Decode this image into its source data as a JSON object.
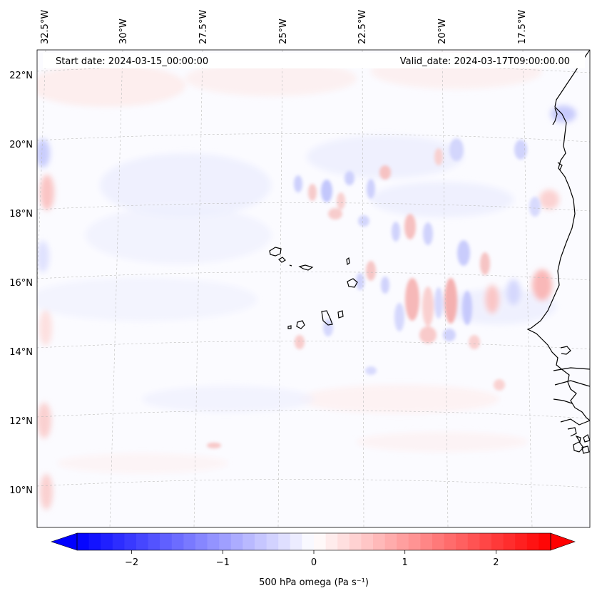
{
  "header": {
    "start_date": "Start date: 2024-03-15_00:00:00",
    "valid_date": "Valid_date: 2024-03-17T09:00:00.00"
  },
  "map": {
    "lon_labels": [
      "32.5°W",
      "30°W",
      "27.5°W",
      "25°W",
      "22.5°W",
      "20°W",
      "17.5°W"
    ],
    "lat_labels": [
      "22°N",
      "20°N",
      "18°N",
      "16°N",
      "14°N",
      "12°N",
      "10°N"
    ],
    "field": "500 hPa omega",
    "gridlines": true,
    "coastline_color": "#000000"
  },
  "colorbar": {
    "label": "500 hPa omega (Pa s⁻¹)",
    "ticks": [
      "−2",
      "−1",
      "0",
      "1",
      "2"
    ],
    "tick_values": [
      -2,
      -1,
      0,
      1,
      2
    ],
    "range": [
      -2.6,
      2.6
    ],
    "min_color": "#0000ff",
    "mid_color": "#ffffff",
    "max_color": "#ff0000",
    "extend": "both"
  }
}
